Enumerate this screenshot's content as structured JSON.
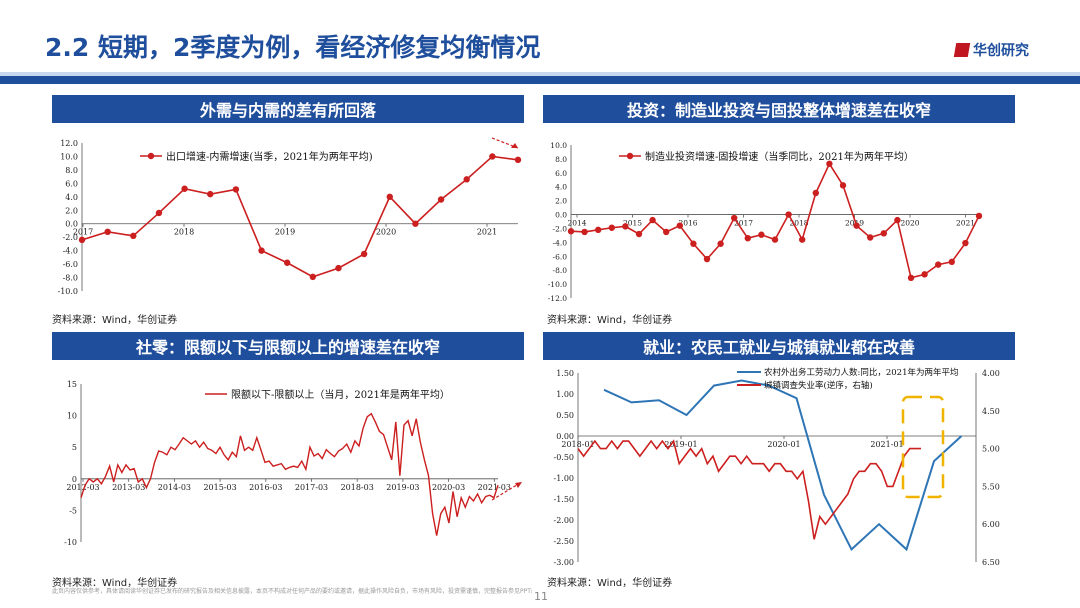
{
  "header": {
    "title": "2.2 短期，2季度为例，看经济修复均衡情况",
    "logo_text": "华创研究"
  },
  "panels": {
    "p1_title": "外需与内需的差有所回落",
    "p2_title": "投资：制造业投资与固投整体增速差在收窄",
    "p3_title": "社零：限额以下与限额以上的增速差在收窄",
    "p4_title": "就业：农民工就业与城镇就业都在改善"
  },
  "sources": {
    "p1": "资料来源：Wind，华创证券",
    "p2": "资料来源：Wind，华创证券",
    "p3": "资料来源：Wind，华创证券",
    "p4": "资料来源：Wind，华创证券"
  },
  "footer": {
    "disclaimer": "此页内容仅供参考，具体请阅读华创证券已发布的研究报告及相关信息披露，本页不构成对任何产品的要约或邀请，据此操作风险自负，市场有风险，投资需谨慎，完整报告参见PPT最后部分。",
    "page": "11"
  },
  "colors": {
    "brand": "#1f4e9c",
    "red": "#cc1f1f",
    "blue": "#2e75b6",
    "gold": "#f0b400"
  },
  "chart_data": [
    {
      "type": "line",
      "title": "外需与内需的差有所回落",
      "legend": "出口增速-内需增速(当季，2021年为两年平均)",
      "ylim": [
        -10,
        12
      ],
      "yticks": [
        "12.0",
        "10.0",
        "8.0",
        "6.0",
        "4.0",
        "2.0",
        "0.0",
        "-2.0",
        "-4.0",
        "-6.0",
        "-8.0",
        "-10.0"
      ],
      "xticks": [
        "2017",
        "2018",
        "2019",
        "2020",
        "2021"
      ],
      "values": [
        -2.4,
        -1.2,
        -1.8,
        1.6,
        5.2,
        4.4,
        5.1,
        -4.0,
        -5.8,
        -7.9,
        -6.6,
        -4.5,
        4.0,
        0.0,
        3.6,
        6.6,
        10.0,
        9.5
      ]
    },
    {
      "type": "line",
      "title": "投资：制造业投资与固投整体增速差在收窄",
      "legend": "制造业投资增速-固投增速（当季同比，2021年为两年平均）",
      "ylim": [
        -12,
        10
      ],
      "yticks": [
        "10.0",
        "8.0",
        "6.0",
        "4.0",
        "2.0",
        "0.0",
        "-2.0",
        "-4.0",
        "-6.0",
        "-8.0",
        "-10.0",
        "-12.0"
      ],
      "xticks": [
        "2014",
        "2015",
        "2016",
        "2017",
        "2018",
        "2019",
        "2020",
        "2021"
      ],
      "values": [
        -2.4,
        -2.5,
        -2.2,
        -1.9,
        -1.7,
        -2.8,
        -0.8,
        -2.5,
        -1.6,
        -4.2,
        -6.4,
        -4.2,
        -0.5,
        -3.4,
        -2.9,
        -3.6,
        0.0,
        -3.6,
        3.1,
        7.3,
        4.2,
        -1.6,
        -3.3,
        -2.7,
        -0.8,
        -9.1,
        -8.6,
        -7.2,
        -6.8,
        -4.1,
        -0.2
      ]
    },
    {
      "type": "line",
      "title": "社零：限额以下与限额以上的增速差在收窄",
      "legend": "限额以下-限额以上（当月，2021年是两年平均）",
      "ylim": [
        -10,
        15
      ],
      "yticks": [
        "15",
        "10",
        "5",
        "0",
        "-5",
        "-10"
      ],
      "xticks": [
        "2012-03",
        "2013-03",
        "2014-03",
        "2015-03",
        "2016-03",
        "2017-03",
        "2018-03",
        "2019-03",
        "2020-03",
        "2021-03"
      ],
      "values": [
        -3.0,
        -1.0,
        0.0,
        -0.5,
        0.0,
        -0.8,
        0.4,
        2.0,
        -0.5,
        2.2,
        1.0,
        2.2,
        1.4,
        1.6,
        -0.5,
        0.0,
        -1.4,
        0.0,
        2.6,
        4.4,
        4.2,
        3.8,
        5.0,
        4.6,
        5.5,
        6.5,
        6.0,
        5.5,
        6.0,
        5.0,
        5.8,
        4.8,
        4.5,
        4.0,
        5.0,
        3.8,
        3.0,
        4.2,
        3.5,
        6.8,
        4.5,
        5.0,
        4.5,
        6.5,
        4.6,
        2.6,
        2.8,
        2.0,
        2.2,
        2.4,
        1.5,
        1.8,
        2.0,
        1.8,
        2.8,
        1.5,
        5.0,
        3.6,
        4.0,
        3.2,
        4.6,
        4.0,
        3.5,
        4.4,
        4.8,
        5.5,
        4.2,
        6.0,
        5.2,
        8.0,
        9.8,
        10.3,
        9.0,
        7.5,
        7.0,
        5.0,
        3.0,
        9.0,
        0.5,
        8.5,
        9.2,
        6.8,
        9.5,
        5.8,
        3.0,
        0.5,
        -5.5,
        -9.0,
        -5.5,
        -4.5,
        -7.0,
        -2.0,
        -6.0,
        -3.0,
        -4.5,
        -2.8,
        -3.5,
        -2.4,
        -3.8,
        -2.8,
        -2.6,
        -3.0,
        -1.0
      ]
    },
    {
      "type": "line",
      "title": "就业：农民工就业与城镇就业都在改善",
      "series": [
        {
          "name": "农村外出务工劳动力人数:同比，2021年为两年平均",
          "axis": "left",
          "color": "#2e75b6",
          "values": [
            1.1,
            0.8,
            0.85,
            0.5,
            1.2,
            1.32,
            1.2,
            0.9,
            -1.4,
            -2.7,
            -2.1,
            -2.7,
            -0.6,
            0.0
          ]
        },
        {
          "name": "城镇调查失业率(逆序，右轴)",
          "axis": "right",
          "color": "#cc1f1f",
          "values": [
            5.0,
            5.1,
            5.0,
            4.9,
            5.0,
            5.0,
            4.9,
            5.0,
            4.9,
            4.9,
            5.0,
            5.1,
            5.0,
            4.9,
            5.0,
            4.9,
            5.0,
            4.9,
            5.2,
            5.1,
            5.0,
            5.1,
            5.0,
            5.2,
            5.1,
            5.3,
            5.2,
            5.1,
            5.1,
            5.2,
            5.1,
            5.2,
            5.2,
            5.2,
            5.3,
            5.2,
            5.2,
            5.3,
            5.3,
            5.4,
            5.3,
            5.7,
            6.2,
            5.9,
            6.0,
            5.9,
            5.8,
            5.7,
            5.6,
            5.4,
            5.3,
            5.3,
            5.2,
            5.2,
            5.3,
            5.5,
            5.5,
            5.3,
            5.1,
            5.0,
            5.0,
            5.0
          ]
        }
      ],
      "ylim_left": [
        -3,
        1.5
      ],
      "yticks_left": [
        "1.50",
        "1.00",
        "0.50",
        "0.00",
        "-0.50",
        "-1.00",
        "-1.50",
        "-2.00",
        "-2.50",
        "-3.00"
      ],
      "ylim_right": [
        4.0,
        6.5
      ],
      "yticks_right": [
        "4.00",
        "4.50",
        "5.00",
        "5.50",
        "6.00",
        "6.50"
      ],
      "xticks": [
        "2018-01",
        "2019-01",
        "2020-01",
        "2021-01"
      ]
    }
  ]
}
